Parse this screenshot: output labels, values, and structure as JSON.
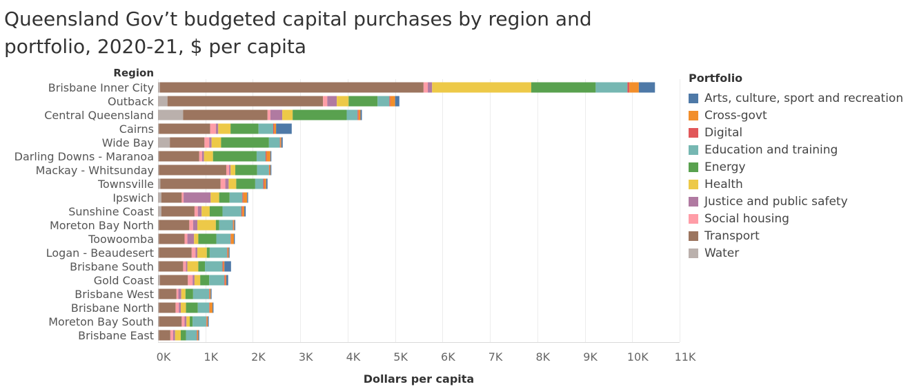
{
  "title": "Queensland Gov’t budgeted capital purchases by region and portfolio, 2020-21, $ per capita",
  "legend": {
    "title": "Portfolio",
    "items": [
      {
        "label": "Arts, culture, sport and recreation",
        "color": "#4e79a7"
      },
      {
        "label": "Cross-govt",
        "color": "#f28e2b"
      },
      {
        "label": "Digital",
        "color": "#e15759"
      },
      {
        "label": "Education and training",
        "color": "#76b7b2"
      },
      {
        "label": "Energy",
        "color": "#59a14f"
      },
      {
        "label": "Health",
        "color": "#edc948"
      },
      {
        "label": "Justice and public safety",
        "color": "#b07aa1"
      },
      {
        "label": "Social housing",
        "color": "#ff9da7"
      },
      {
        "label": "Transport",
        "color": "#9c755f"
      },
      {
        "label": "Water",
        "color": "#bab0ac"
      }
    ]
  },
  "chart_data": {
    "type": "bar",
    "orientation": "horizontal",
    "stacked": true,
    "title": "Queensland Gov’t budgeted capital purchases by region and portfolio, 2020-21, $ per capita",
    "row_header": "Region",
    "xlabel": "Dollars per capita",
    "xlim": [
      0,
      11000
    ],
    "ticks": [
      0,
      1000,
      2000,
      3000,
      4000,
      5000,
      6000,
      7000,
      8000,
      9000,
      10000,
      11000
    ],
    "tick_labels": [
      "0K",
      "1K",
      "2K",
      "3K",
      "4K",
      "5K",
      "6K",
      "7K",
      "8K",
      "9K",
      "10K",
      "11K"
    ],
    "stack_order": [
      "Water",
      "Transport",
      "Social housing",
      "Justice and public safety",
      "Health",
      "Energy",
      "Education and training",
      "Digital",
      "Cross-govt",
      "Arts, culture, sport and recreation"
    ],
    "categories": [
      "Brisbane Inner City",
      "Outback",
      "Central Queensland",
      "Cairns",
      "Wide Bay",
      "Darling Downs - Maranoa",
      "Mackay - Whitsunday",
      "Townsville",
      "Ipswich",
      "Sunshine Coast",
      "Moreton Bay North",
      "Toowoomba",
      "Logan - Beaudesert",
      "Brisbane South",
      "Gold Coast",
      "Brisbane West",
      "Brisbane North",
      "Moreton Bay South",
      "Brisbane East"
    ],
    "series": [
      {
        "name": "Water",
        "values": [
          40,
          200,
          530,
          20,
          250,
          20,
          20,
          50,
          70,
          70,
          20,
          20,
          20,
          20,
          40,
          20,
          20,
          20,
          20
        ]
      },
      {
        "name": "Transport",
        "values": [
          5560,
          3280,
          1780,
          1080,
          730,
          850,
          1420,
          1270,
          430,
          700,
          640,
          540,
          690,
          510,
          590,
          370,
          350,
          480,
          240
        ]
      },
      {
        "name": "Social housing",
        "values": [
          90,
          90,
          60,
          120,
          100,
          60,
          60,
          100,
          40,
          70,
          80,
          60,
          80,
          60,
          100,
          40,
          70,
          60,
          60
        ]
      },
      {
        "name": "Justice and public safety",
        "values": [
          90,
          200,
          250,
          50,
          50,
          40,
          30,
          70,
          570,
          80,
          90,
          140,
          40,
          30,
          40,
          60,
          40,
          40,
          40
        ]
      },
      {
        "name": "Health",
        "values": [
          2090,
          250,
          220,
          260,
          200,
          190,
          100,
          160,
          180,
          170,
          390,
          90,
          200,
          230,
          120,
          90,
          110,
          70,
          120
        ]
      },
      {
        "name": "Energy",
        "values": [
          1360,
          610,
          1140,
          590,
          1010,
          920,
          460,
          400,
          220,
          270,
          70,
          380,
          60,
          140,
          190,
          160,
          250,
          60,
          110
        ]
      },
      {
        "name": "Education and training",
        "values": [
          670,
          250,
          230,
          310,
          230,
          190,
          250,
          170,
          270,
          400,
          290,
          300,
          370,
          370,
          320,
          340,
          240,
          290,
          230
        ]
      },
      {
        "name": "Digital",
        "values": [
          40,
          20,
          20,
          20,
          10,
          20,
          10,
          20,
          20,
          20,
          10,
          10,
          10,
          20,
          20,
          10,
          10,
          10,
          10
        ]
      },
      {
        "name": "Cross-govt",
        "values": [
          200,
          100,
          40,
          40,
          20,
          80,
          20,
          40,
          80,
          40,
          20,
          60,
          20,
          20,
          20,
          20,
          60,
          20,
          20
        ]
      },
      {
        "name": "Arts, culture, sport and recreation",
        "values": [
          340,
          90,
          30,
          330,
          30,
          20,
          20,
          30,
          20,
          30,
          20,
          20,
          20,
          140,
          40,
          20,
          20,
          20,
          20
        ]
      }
    ]
  }
}
